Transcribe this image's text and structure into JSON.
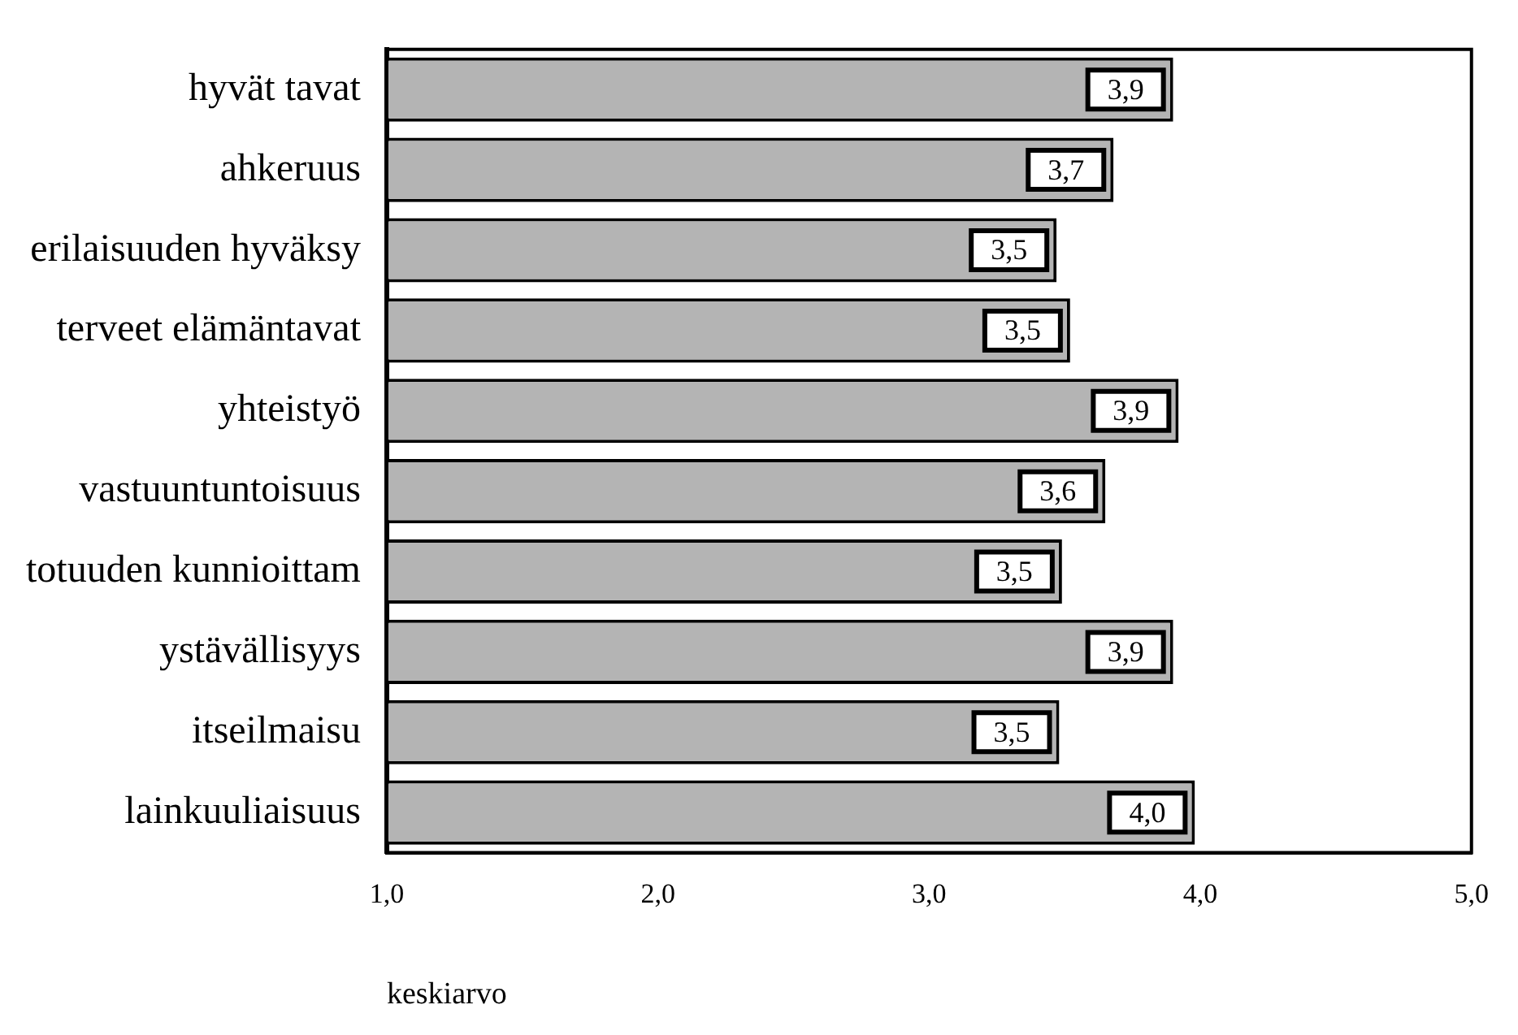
{
  "chart_data": {
    "type": "bar",
    "orientation": "horizontal",
    "xlabel": "keskiarvo",
    "categories": [
      "hyvät tavat",
      "ahkeruus",
      "erilaisuuden hyväksy",
      "terveet elämäntavat",
      "yhteistyö",
      "vastuuntuntoisuus",
      "totuuden kunnioittam",
      "ystävällisyys",
      "itseilmaisu",
      "lainkuuliaisuus"
    ],
    "values": [
      3.9,
      3.68,
      3.47,
      3.52,
      3.92,
      3.65,
      3.49,
      3.9,
      3.48,
      3.98
    ],
    "value_labels": [
      "3,9",
      "3,7",
      "3,5",
      "3,5",
      "3,9",
      "3,6",
      "3,5",
      "3,9",
      "3,5",
      "4,0"
    ],
    "color": "#b4b4b4",
    "xlim": [
      1,
      5
    ],
    "xticks": [
      {
        "value": 1,
        "label": "1,0"
      },
      {
        "value": 2,
        "label": "2,0"
      },
      {
        "value": 3,
        "label": "3,0"
      },
      {
        "value": 4,
        "label": "4,0"
      },
      {
        "value": 5,
        "label": "5,0"
      }
    ],
    "grid": false,
    "legend": false
  }
}
